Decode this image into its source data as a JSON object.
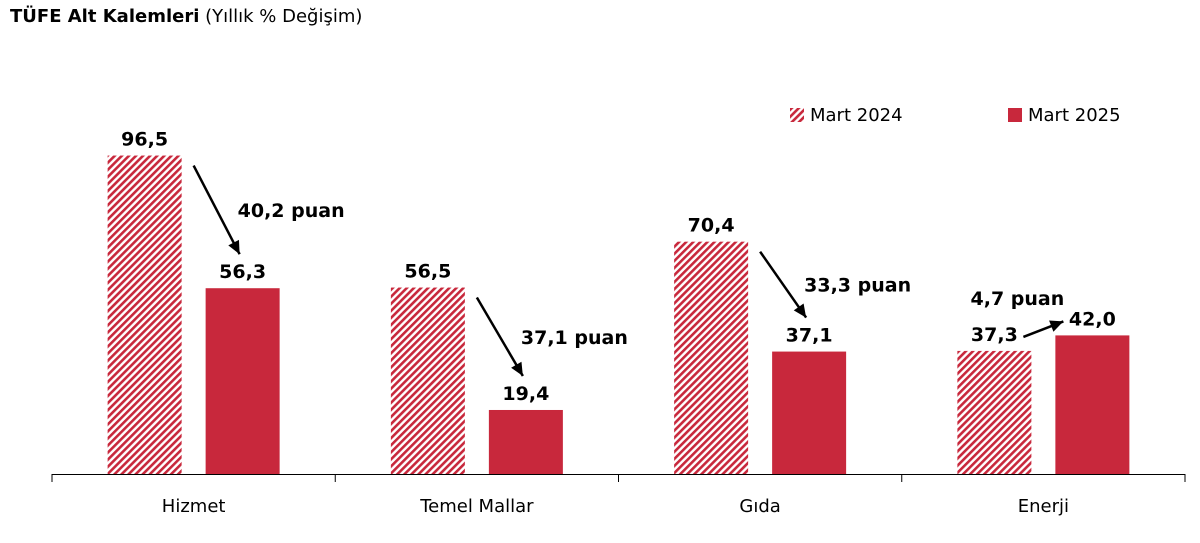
{
  "chart_data": {
    "type": "bar",
    "title": "TÜFE Alt Kalemleri",
    "subtitle": "(Yıllık % Değişim)",
    "categories": [
      "Hizmet",
      "Temel Mallar",
      "Gıda",
      "Enerji"
    ],
    "series": [
      {
        "name": "Mart 2024",
        "values": [
          96.5,
          56.5,
          70.4,
          37.3
        ],
        "labels": [
          "96,5",
          "56,5",
          "70,4",
          "37,3"
        ],
        "color": "#c8283c",
        "pattern": "diagonal-hatch"
      },
      {
        "name": "Mart 2025",
        "values": [
          56.3,
          19.4,
          37.1,
          42.0
        ],
        "labels": [
          "56,3",
          "19,4",
          "37,1",
          "42,0"
        ],
        "color": "#c8283c",
        "pattern": "solid"
      }
    ],
    "annotations": [
      "40,2 puan",
      "37,1 puan",
      "33,3 puan",
      "4,7 puan"
    ],
    "ylim": [
      0,
      100
    ],
    "grid": false,
    "legend_position": "top-right"
  }
}
